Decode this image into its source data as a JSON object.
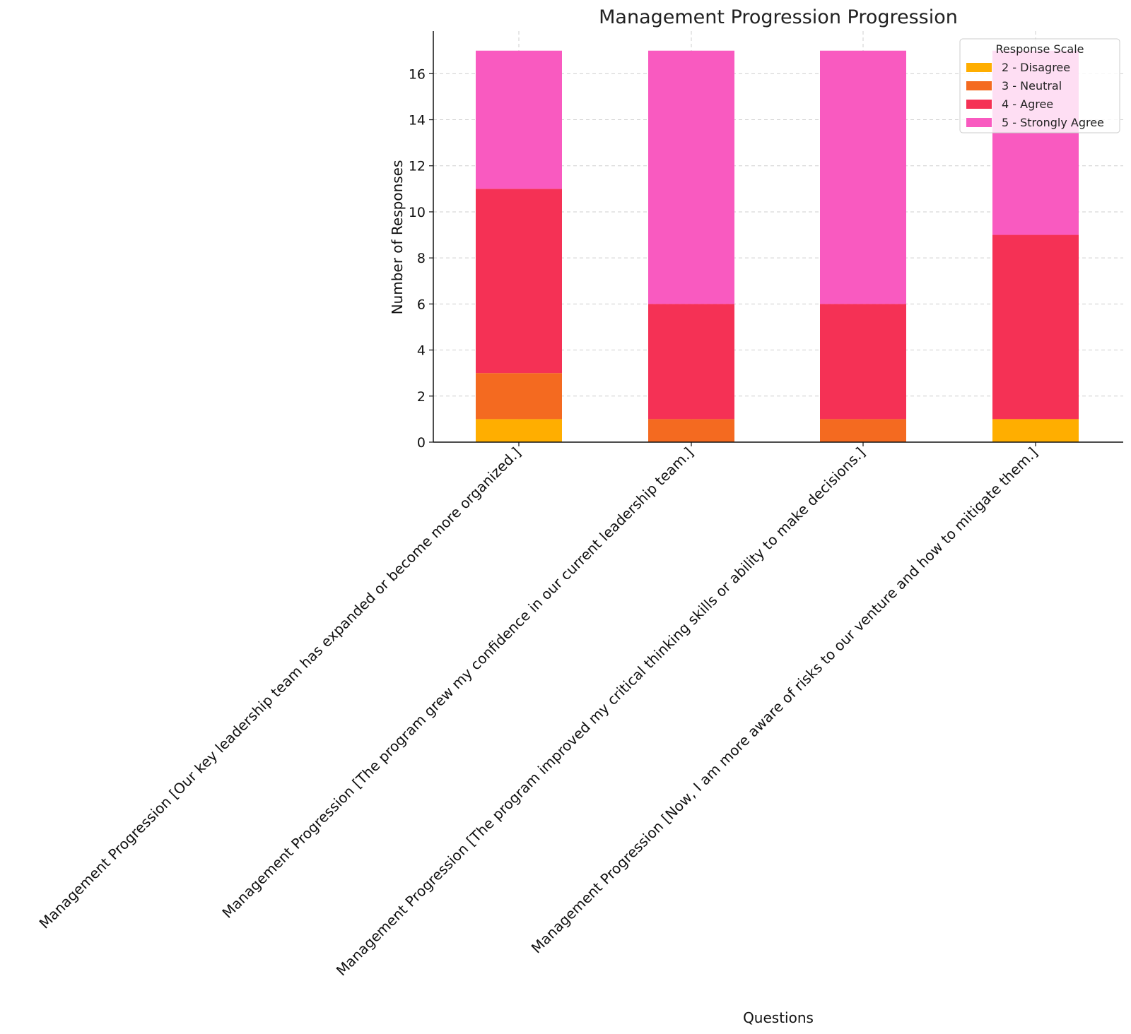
{
  "chart_data": {
    "type": "bar",
    "stacked": true,
    "title": "Management Progression Progression",
    "xlabel": "Questions",
    "ylabel": "Number of Responses",
    "ylim": [
      0,
      17.85
    ],
    "yticks": [
      0,
      2,
      4,
      6,
      8,
      10,
      12,
      14,
      16
    ],
    "grid": true,
    "legend_title": "Response Scale",
    "legend_position": "top-right",
    "categories": [
      "Management Progression [Our key leadership team has expanded or become more organized.]",
      "Management Progression [The program grew my confidence in our current leadership team.]",
      "Management Progression [The program improved my critical thinking skills or ability to make decisions.]",
      "Management Progression [Now, I am more aware of risks to our venture and how to mitigate them.]"
    ],
    "series": [
      {
        "name": "2 - Disagree",
        "color": "#FFAE00",
        "values": [
          1,
          0,
          0,
          1
        ]
      },
      {
        "name": "3 - Neutral",
        "color": "#F46A20",
        "values": [
          2,
          1,
          1,
          0
        ]
      },
      {
        "name": "4 - Agree",
        "color": "#F53155",
        "values": [
          8,
          5,
          5,
          8
        ]
      },
      {
        "name": "5 - Strongly Agree",
        "color": "#F95AC0",
        "values": [
          6,
          11,
          11,
          8
        ]
      }
    ]
  }
}
